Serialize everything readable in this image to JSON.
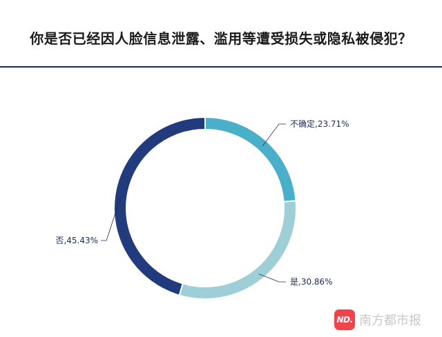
{
  "chart_data": {
    "type": "pie",
    "title": "你是否已经因人脸信息泄露、滥用等遭受损失或隐私被侵犯？",
    "categories": [
      "不确定",
      "是",
      "否"
    ],
    "values": [
      23.71,
      30.86,
      45.43
    ],
    "unit": "%",
    "labels": [
      "不确定,23.71%",
      "是,30.86%",
      "否,45.43%"
    ],
    "colors": [
      "#4aafc8",
      "#9ecfd6",
      "#223b7d"
    ]
  },
  "watermark": {
    "logo_text": "ND.",
    "text": "南方都市报"
  }
}
